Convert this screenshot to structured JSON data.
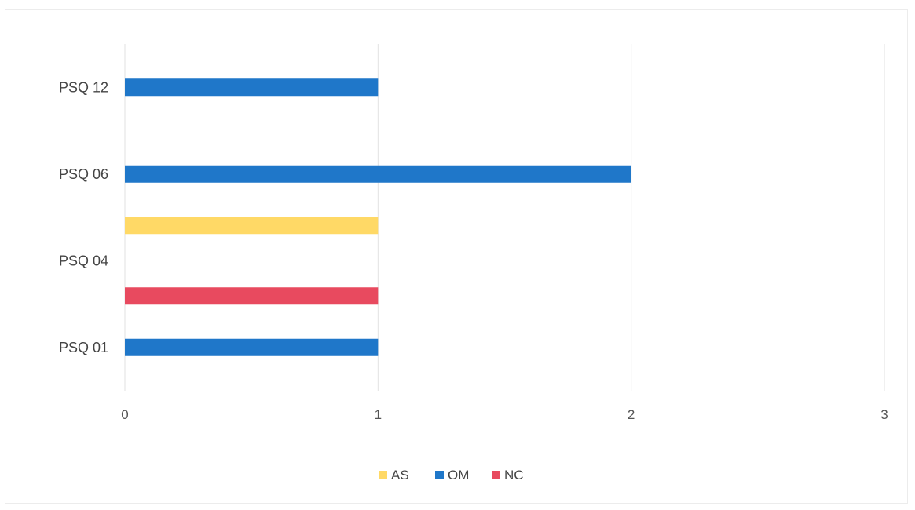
{
  "chart_data": {
    "type": "bar",
    "orientation": "horizontal",
    "categories": [
      "PSQ 01",
      "PSQ 04",
      "PSQ 06",
      "PSQ 12"
    ],
    "series": [
      {
        "name": "AS",
        "color": "#ffd966",
        "values": [
          0,
          1,
          0,
          0
        ]
      },
      {
        "name": "OM",
        "color": "#1f77c9",
        "values": [
          1,
          0,
          2,
          1
        ]
      },
      {
        "name": "NC",
        "color": "#e84a5f",
        "values": [
          0,
          1,
          0,
          0
        ]
      }
    ],
    "xlim": [
      0,
      3
    ],
    "xticks": [
      "0",
      "1",
      "2",
      "3"
    ],
    "grid": true,
    "legend": "bottom-center",
    "title": "",
    "xlabel": "",
    "ylabel": ""
  }
}
